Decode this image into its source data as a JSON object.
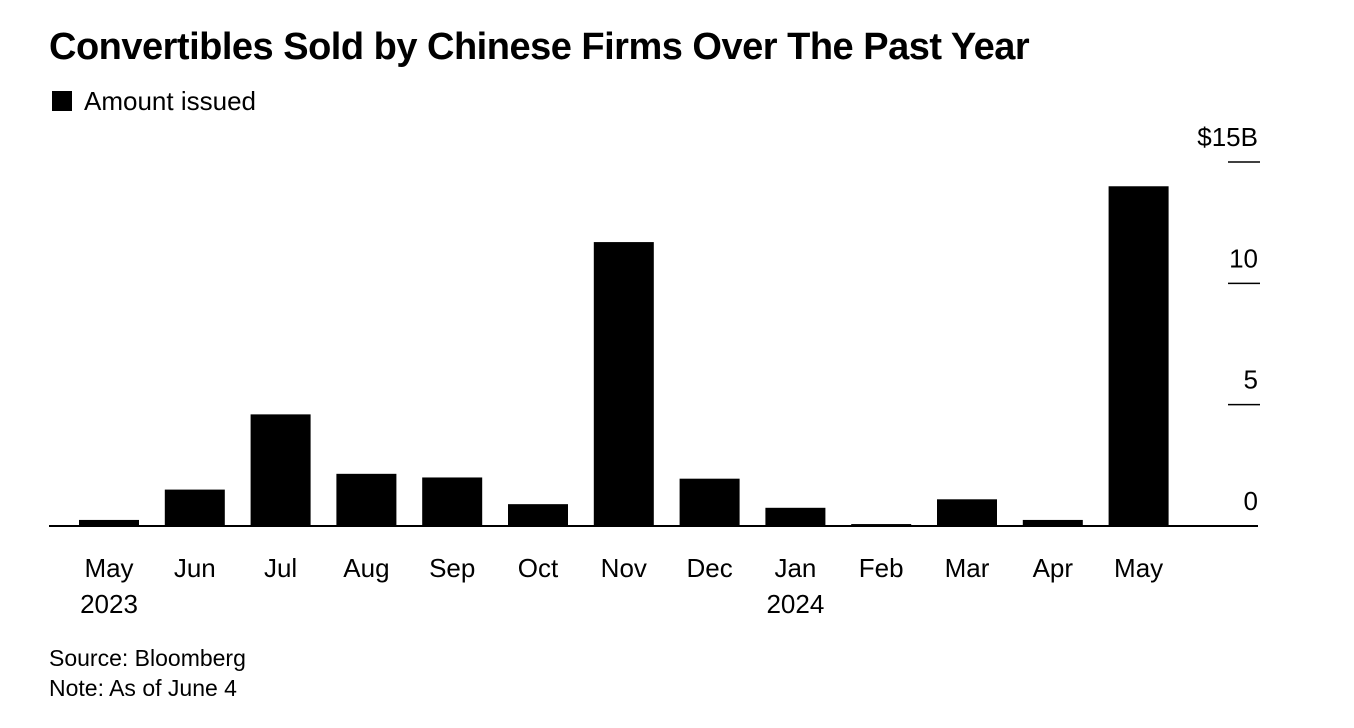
{
  "title": "Convertibles Sold by Chinese Firms Over The Past Year",
  "legend": {
    "label": "Amount issued",
    "color": "#000000"
  },
  "footer": {
    "source": "Source: Bloomberg",
    "note": "Note: As of June 4"
  },
  "chart_data": {
    "type": "bar",
    "title": "Convertibles Sold by Chinese Firms Over The Past Year",
    "xlabel": "",
    "ylabel": "",
    "categories": [
      "May",
      "Jun",
      "Jul",
      "Aug",
      "Sep",
      "Oct",
      "Nov",
      "Dec",
      "Jan",
      "Feb",
      "Mar",
      "Apr",
      "May"
    ],
    "year_labels": [
      "2023",
      "",
      "",
      "",
      "",
      "",
      "",
      "",
      "2024",
      "",
      "",
      "",
      ""
    ],
    "series": [
      {
        "name": "Amount issued",
        "color": "#000000",
        "values": [
          0.25,
          1.5,
          4.6,
          2.15,
          2.0,
          0.9,
          11.7,
          1.95,
          0.75,
          0.08,
          1.1,
          0.25,
          14.0
        ]
      }
    ],
    "ylim": [
      0,
      15
    ],
    "y_ticks": [
      0,
      5,
      10,
      15
    ],
    "y_tick_labels": [
      "0",
      "5",
      "10",
      "$15B"
    ],
    "y_axis_side": "right",
    "grid": false,
    "legend_position": "top-left"
  }
}
